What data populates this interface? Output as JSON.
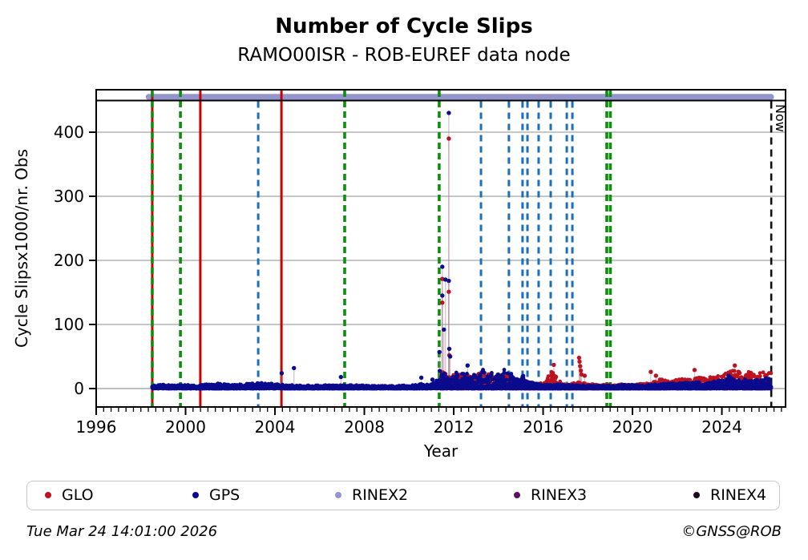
{
  "title": "Number of Cycle Slips",
  "subtitle": "RAMO00ISR - ROB-EUREF data node",
  "footer": {
    "timestamp": "Tue Mar 24 14:01:00 2026",
    "credit": "©GNSS@ROB"
  },
  "legend": [
    {
      "label": "GLO",
      "color": "#bd1320"
    },
    {
      "label": "GPS",
      "color": "#0b0b8e"
    },
    {
      "label": "RINEX2",
      "color": "#9595cd"
    },
    {
      "label": "RINEX3",
      "color": "#5c105e"
    },
    {
      "label": "RINEX4",
      "color": "#1e0b20"
    }
  ],
  "chart_data": {
    "type": "scatter",
    "title": "Number of Cycle Slips",
    "subtitle": "RAMO00ISR - ROB-EUREF data node",
    "xlabel": "Year",
    "ylabel": "Cycle Slipsx1000/nr. Obs",
    "x_ticks": [
      1996,
      2000,
      2004,
      2008,
      2012,
      2016,
      2020,
      2024
    ],
    "y_ticks": [
      0,
      100,
      200,
      300,
      400
    ],
    "xlim": [
      1996.0,
      2026.85
    ],
    "ylim": [
      -29,
      466
    ],
    "grid": "horizontal-gray",
    "legend_position": "bottom",
    "now_line": {
      "label": "Now",
      "year": 2026.21,
      "color": "#111111",
      "style": "dashed"
    },
    "rinex2_band": {
      "color": "#9595cd",
      "segments": [
        [
          1998.35,
          2023.88
        ],
        [
          2023.97,
          2026.2
        ]
      ],
      "row": "top-strip"
    },
    "event_lines": {
      "red_solid": {
        "color": "#cc0000",
        "years": [
          1998.51,
          2000.66,
          2004.29
        ]
      },
      "green_dashed": {
        "color": "#0c8f0c",
        "years": [
          1998.51,
          1999.77,
          2007.12,
          2011.35,
          2018.85,
          2019.01
        ]
      },
      "blue_dashed": {
        "color": "#1d6fb8",
        "years": [
          2003.25,
          2013.22,
          2014.47,
          2015.08,
          2015.3,
          2015.8,
          2016.34,
          2017.06,
          2017.31
        ]
      }
    },
    "series": [
      {
        "name": "GLO",
        "color": "#bd1320",
        "start": 2011.35,
        "end": 2026.2,
        "envelope": [
          [
            2011.35,
            12
          ],
          [
            2011.5,
            30
          ],
          [
            2011.65,
            22
          ],
          [
            2011.8,
            18
          ],
          [
            2012.0,
            22
          ],
          [
            2012.2,
            26
          ],
          [
            2012.4,
            20
          ],
          [
            2012.6,
            24
          ],
          [
            2012.8,
            18
          ],
          [
            2013.0,
            20
          ],
          [
            2013.2,
            26
          ],
          [
            2013.4,
            22
          ],
          [
            2013.6,
            26
          ],
          [
            2013.8,
            18
          ],
          [
            2014.0,
            20
          ],
          [
            2014.2,
            24
          ],
          [
            2014.4,
            20
          ],
          [
            2014.6,
            16
          ],
          [
            2014.8,
            14
          ],
          [
            2015.0,
            16
          ],
          [
            2015.2,
            12
          ],
          [
            2015.5,
            10
          ],
          [
            2015.8,
            8
          ],
          [
            2016.1,
            10
          ],
          [
            2016.3,
            26
          ],
          [
            2016.45,
            36
          ],
          [
            2016.6,
            18
          ],
          [
            2016.8,
            8
          ],
          [
            2017.0,
            7
          ],
          [
            2017.3,
            8
          ],
          [
            2017.6,
            10
          ],
          [
            2017.9,
            8
          ],
          [
            2018.2,
            7
          ],
          [
            2018.6,
            6
          ],
          [
            2019.0,
            6
          ],
          [
            2019.4,
            7
          ],
          [
            2019.8,
            6
          ],
          [
            2020.2,
            7
          ],
          [
            2020.6,
            8
          ],
          [
            2021.0,
            12
          ],
          [
            2021.3,
            16
          ],
          [
            2021.6,
            12
          ],
          [
            2021.9,
            14
          ],
          [
            2022.2,
            16
          ],
          [
            2022.5,
            14
          ],
          [
            2022.8,
            16
          ],
          [
            2023.1,
            18
          ],
          [
            2023.4,
            22
          ],
          [
            2023.7,
            18
          ],
          [
            2024.0,
            22
          ],
          [
            2024.3,
            26
          ],
          [
            2024.6,
            30
          ],
          [
            2024.9,
            24
          ],
          [
            2025.2,
            28
          ],
          [
            2025.5,
            22
          ],
          [
            2025.8,
            26
          ],
          [
            2026.0,
            28
          ],
          [
            2026.2,
            24
          ]
        ],
        "outliers": [
          [
            2011.49,
            171
          ],
          [
            2011.49,
            134
          ],
          [
            2011.78,
            390
          ],
          [
            2011.78,
            151
          ],
          [
            2011.8,
            52
          ],
          [
            2016.48,
            37
          ],
          [
            2017.61,
            48
          ],
          [
            2017.63,
            42
          ],
          [
            2017.66,
            35
          ],
          [
            2017.69,
            28
          ],
          [
            2017.72,
            22
          ],
          [
            2017.86,
            20
          ],
          [
            2020.82,
            26
          ],
          [
            2021.05,
            20
          ],
          [
            2022.78,
            29
          ],
          [
            2024.58,
            36
          ]
        ]
      },
      {
        "name": "GPS",
        "color": "#0b0b8e",
        "start": 1998.51,
        "end": 2026.2,
        "envelope": [
          [
            1998.51,
            5
          ],
          [
            1999.0,
            6
          ],
          [
            1999.5,
            5
          ],
          [
            2000.0,
            6
          ],
          [
            2000.5,
            5
          ],
          [
            2001.0,
            7
          ],
          [
            2001.5,
            8
          ],
          [
            2002.0,
            6
          ],
          [
            2002.5,
            7
          ],
          [
            2003.0,
            8
          ],
          [
            2003.5,
            9
          ],
          [
            2004.0,
            7
          ],
          [
            2004.5,
            6
          ],
          [
            2005.0,
            5
          ],
          [
            2006.0,
            5
          ],
          [
            2007.0,
            6
          ],
          [
            2008.0,
            5
          ],
          [
            2009.0,
            4
          ],
          [
            2009.5,
            5
          ],
          [
            2010.0,
            5
          ],
          [
            2010.5,
            7
          ],
          [
            2010.9,
            9
          ],
          [
            2011.2,
            10
          ],
          [
            2011.4,
            40
          ],
          [
            2011.55,
            28
          ],
          [
            2011.7,
            20
          ],
          [
            2011.9,
            16
          ],
          [
            2012.1,
            26
          ],
          [
            2012.3,
            20
          ],
          [
            2012.5,
            28
          ],
          [
            2012.7,
            18
          ],
          [
            2012.9,
            24
          ],
          [
            2013.1,
            20
          ],
          [
            2013.3,
            34
          ],
          [
            2013.5,
            26
          ],
          [
            2013.7,
            30
          ],
          [
            2013.9,
            20
          ],
          [
            2014.1,
            26
          ],
          [
            2014.3,
            34
          ],
          [
            2014.5,
            26
          ],
          [
            2014.7,
            20
          ],
          [
            2014.9,
            16
          ],
          [
            2015.1,
            20
          ],
          [
            2015.3,
            14
          ],
          [
            2015.5,
            10
          ],
          [
            2015.8,
            7
          ],
          [
            2016.2,
            6
          ],
          [
            2016.6,
            7
          ],
          [
            2017.0,
            6
          ],
          [
            2017.5,
            5
          ],
          [
            2018.0,
            6
          ],
          [
            2018.5,
            5
          ],
          [
            2019.0,
            5
          ],
          [
            2019.5,
            6
          ],
          [
            2020.0,
            6
          ],
          [
            2020.5,
            5
          ],
          [
            2021.0,
            7
          ],
          [
            2021.4,
            10
          ],
          [
            2021.8,
            8
          ],
          [
            2022.2,
            10
          ],
          [
            2022.6,
            9
          ],
          [
            2023.0,
            11
          ],
          [
            2023.4,
            10
          ],
          [
            2023.8,
            12
          ],
          [
            2024.1,
            14
          ],
          [
            2024.4,
            18
          ],
          [
            2024.7,
            13
          ],
          [
            2025.0,
            15
          ],
          [
            2025.3,
            12
          ],
          [
            2025.6,
            14
          ],
          [
            2025.9,
            16
          ],
          [
            2026.2,
            18
          ]
        ],
        "outliers": [
          [
            2004.3,
            24
          ],
          [
            2004.85,
            32
          ],
          [
            2006.95,
            18
          ],
          [
            2010.55,
            17
          ],
          [
            2011.05,
            14
          ],
          [
            2011.36,
            57
          ],
          [
            2011.49,
            190
          ],
          [
            2011.49,
            145
          ],
          [
            2011.56,
            92
          ],
          [
            2011.63,
            170
          ],
          [
            2011.78,
            430
          ],
          [
            2011.78,
            168
          ],
          [
            2011.8,
            62
          ],
          [
            2011.84,
            50
          ],
          [
            2012.62,
            36
          ],
          [
            2024.3,
            20
          ]
        ]
      }
    ]
  }
}
